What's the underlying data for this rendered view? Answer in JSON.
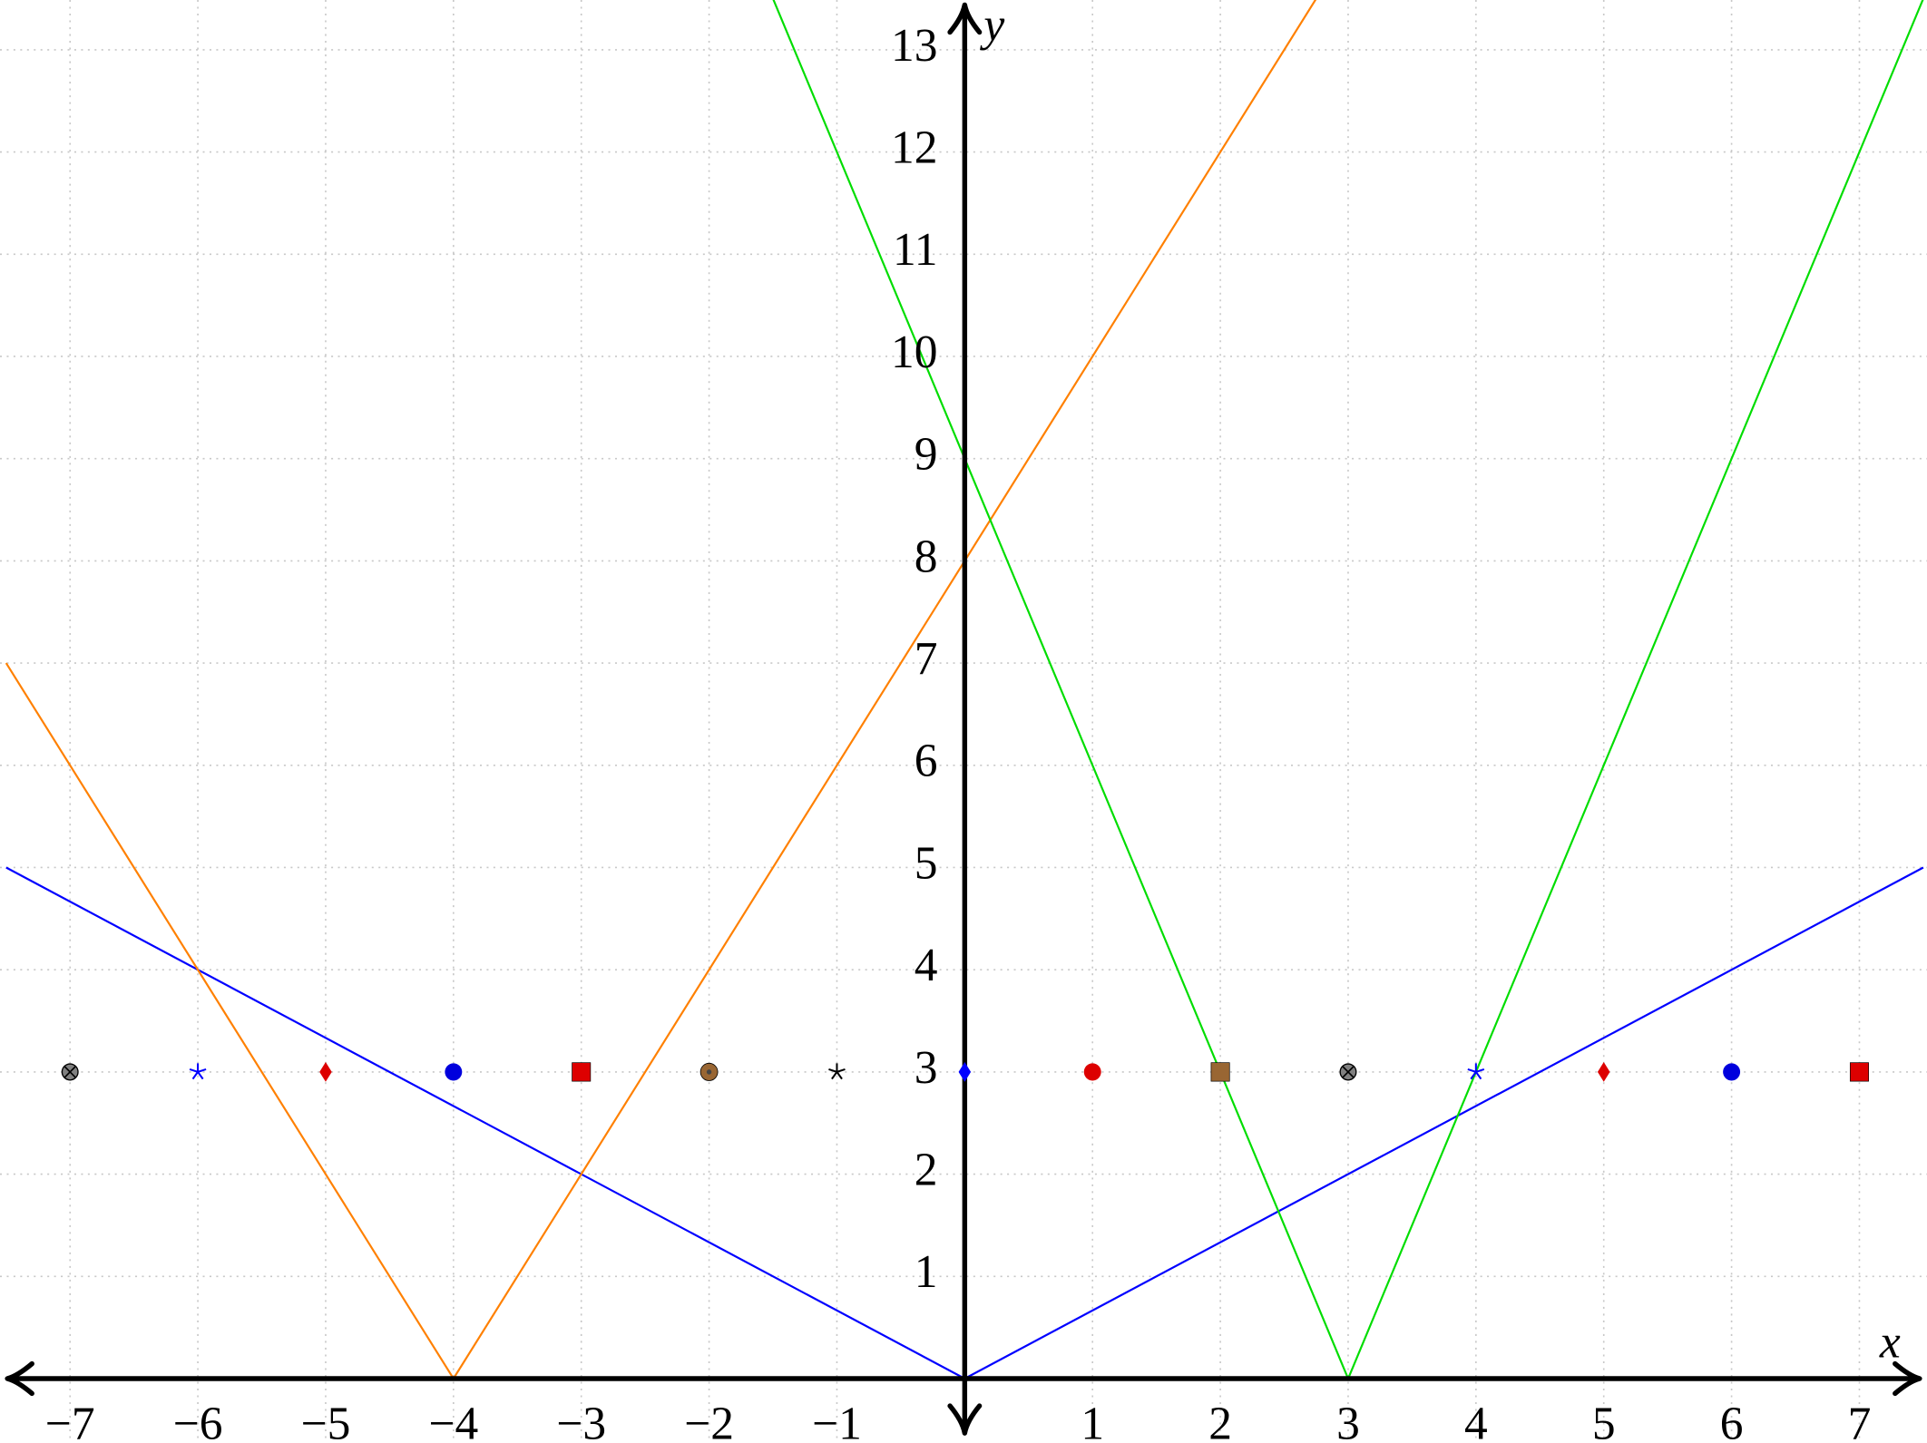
{
  "chart_data": {
    "type": "line",
    "x_label": "x",
    "y_label": "y",
    "xlim": [
      -7.548,
      7.529
    ],
    "ylim": [
      -0.63,
      13.487
    ],
    "xticks": [
      {
        "value": -7,
        "label": "−7"
      },
      {
        "value": -6,
        "label": "−6"
      },
      {
        "value": -5,
        "label": "−5"
      },
      {
        "value": -4,
        "label": "−4"
      },
      {
        "value": -3,
        "label": "−3"
      },
      {
        "value": -2,
        "label": "−2"
      },
      {
        "value": -1,
        "label": "−1"
      },
      1,
      2,
      3,
      4,
      5,
      6,
      7
    ],
    "yticks": [
      1,
      2,
      3,
      4,
      5,
      6,
      7,
      8,
      9,
      10,
      11,
      12,
      13
    ],
    "grid": true,
    "series": [
      {
        "color": "#0000ff",
        "x": [
          -7.5,
          0,
          7.5
        ],
        "y": [
          5,
          0,
          5
        ]
      },
      {
        "color": "#ff8000",
        "x": [
          -7.5,
          -4,
          2.75
        ],
        "y": [
          7,
          0,
          13.5
        ]
      },
      {
        "color": "#00dd00",
        "x": [
          -1.5,
          3,
          7.5
        ],
        "y": [
          13.5,
          0,
          13.5
        ]
      }
    ],
    "points": {
      "x": [
        -7,
        -6,
        -5,
        -4,
        -3,
        -2,
        -1,
        0,
        1,
        2,
        3,
        4,
        5,
        6,
        7
      ],
      "y": [
        3,
        3,
        3,
        3,
        3,
        3,
        3,
        3,
        3,
        3,
        3,
        3,
        3,
        3,
        3
      ],
      "markers": [
        "otimes",
        "star",
        "diamond",
        "circle",
        "square",
        "ocirc",
        "star",
        "diamond",
        "circle",
        "square",
        "otimes",
        "star",
        "diamond",
        "circle",
        "square"
      ],
      "colors": [
        "#808080",
        "#0000ff",
        "#dd0000",
        "#0000dd",
        "#dd0000",
        "#996633",
        "#000000",
        "#0000ff",
        "#dd0000",
        "#996633",
        "#808080",
        "#0000ff",
        "#dd0000",
        "#0000dd",
        "#dd0000"
      ]
    }
  }
}
